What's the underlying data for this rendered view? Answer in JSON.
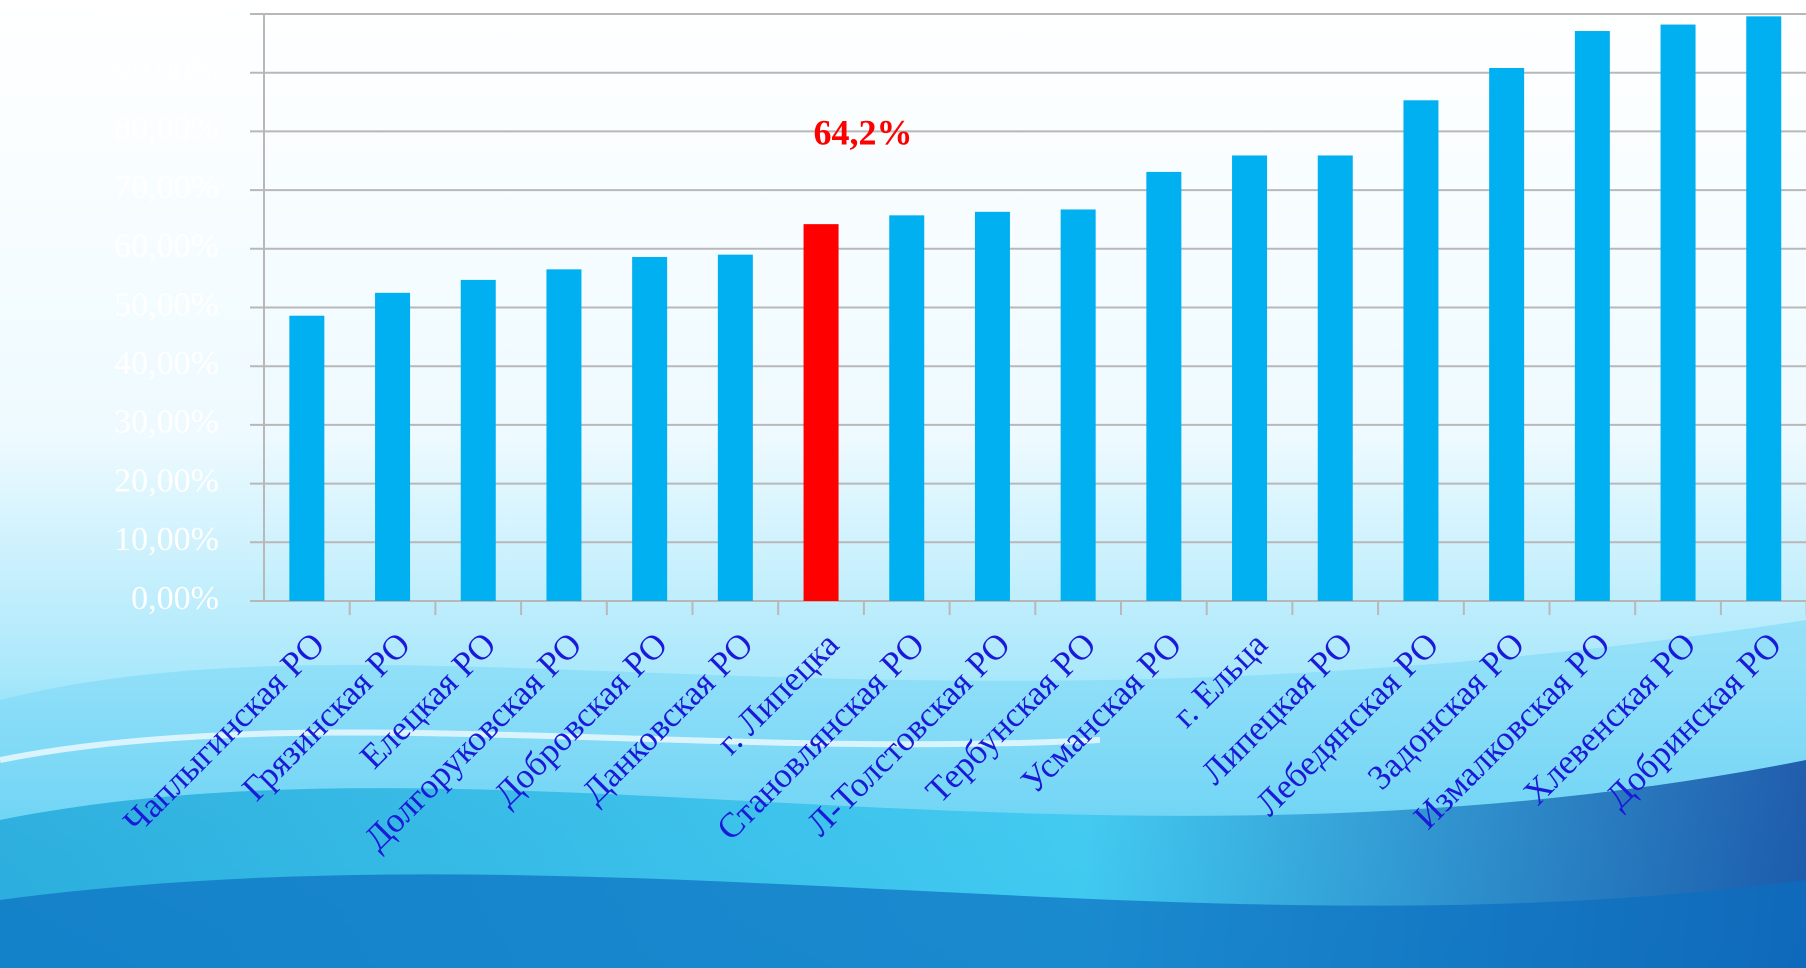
{
  "chart_data": {
    "type": "bar",
    "categories": [
      "Чаплыгинская РО",
      "Грязинская РО",
      "Елецкая РО",
      "Долгоруковская РО",
      "Добровская РО",
      "Данковская РО",
      "г. Липецка",
      "Становлянская РО",
      "Л-Толстовская РО",
      "Тербунская РО",
      "Усманская РО",
      "г. Ельца",
      "Липецкая РО",
      "Лебедянская РО",
      "Задонская РО",
      "Измалковская РО",
      "Хлевенская РО",
      "Добринская РО"
    ],
    "values": [
      48.6,
      52.5,
      54.7,
      56.5,
      58.6,
      59.0,
      64.2,
      65.7,
      66.3,
      66.7,
      73.1,
      75.9,
      75.9,
      85.3,
      90.8,
      97.1,
      98.2,
      99.6
    ],
    "value_labels": [
      null,
      null,
      null,
      null,
      null,
      null,
      "64,2%",
      null,
      null,
      null,
      null,
      null,
      null,
      null,
      null,
      null,
      null,
      null
    ],
    "colors": [
      "#00b0f0",
      "#00b0f0",
      "#00b0f0",
      "#00b0f0",
      "#00b0f0",
      "#00b0f0",
      "#ff0000",
      "#00b0f0",
      "#00b0f0",
      "#00b0f0",
      "#00b0f0",
      "#00b0f0",
      "#00b0f0",
      "#00b0f0",
      "#00b0f0",
      "#00b0f0",
      "#00b0f0",
      "#00b0f0"
    ],
    "ylim": [
      0,
      100
    ],
    "yticks": [
      {
        "value": 0,
        "label": "0,00%"
      },
      {
        "value": 10,
        "label": "10,00%"
      },
      {
        "value": 20,
        "label": "20,00%"
      },
      {
        "value": 30,
        "label": "30,00%"
      },
      {
        "value": 40,
        "label": "40,00%"
      },
      {
        "value": 50,
        "label": "50,00%"
      },
      {
        "value": 60,
        "label": "60,00%"
      },
      {
        "value": 70,
        "label": "70,00%"
      },
      {
        "value": 80,
        "label": "80,00%"
      },
      {
        "value": 90,
        "label": "90,00%"
      },
      {
        "value": 100,
        "label": "100,00%"
      }
    ],
    "grid": true
  }
}
